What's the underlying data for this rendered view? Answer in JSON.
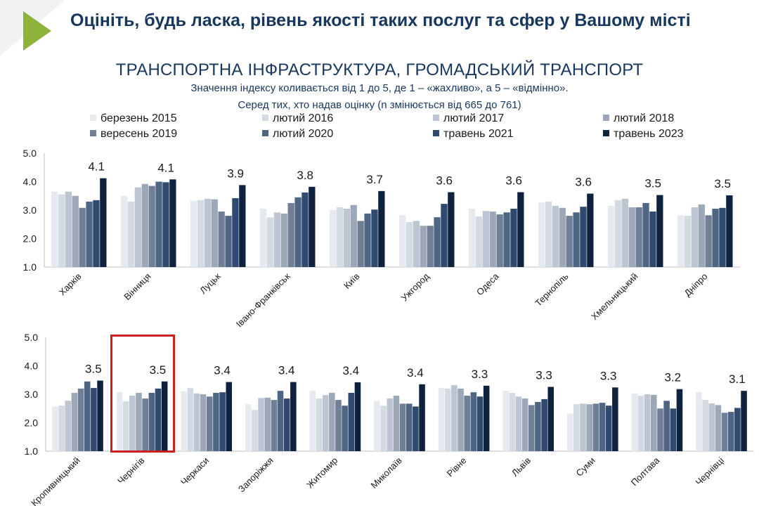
{
  "title": "Оцініть, будь ласка, рівень якості таких послуг та сфер у Вашому місті",
  "subtitle": "ТРАНСПОРТНА ІНФРАСТРУКТУРА, ГРОМАДСЬКИЙ ТРАНСПОРТ",
  "note1": "Значення індексу коливається від 1 до 5, де 1 – «жахливо», а 5 – «відмінно».",
  "note2": "Серед тих, хто надав оцінку (n змінюється від 665 до 761)",
  "colors": {
    "accent_triangle": "#8db33a",
    "title_text": "#17375e",
    "highlight_box": "#cc1f1f",
    "series": [
      "#e6e9ee",
      "#d4dae2",
      "#bcc5d1",
      "#9ca8b8",
      "#6f7f95",
      "#4e6583",
      "#2f4a6e",
      "#0e2240"
    ]
  },
  "legend": [
    "березень 2015",
    "лютий 2016",
    "лютий 2017",
    "лютий 2018",
    "вересень 2019",
    "лютий 2020",
    "травень 2021",
    "травень 2023"
  ],
  "chart_data": [
    {
      "type": "bar",
      "ylim": [
        1,
        5
      ],
      "yticks": [
        "1.0",
        "2.0",
        "3.0",
        "4.0",
        "5.0"
      ],
      "categories": [
        "Харків",
        "Вінниця",
        "Луцьк",
        "Івано-Франківськ",
        "Київ",
        "Ужгород",
        "Одеса",
        "Тернопіль",
        "Хмельницький",
        "Дніпро"
      ],
      "data_labels": [
        "4.1",
        "4.1",
        "3.9",
        "3.8",
        "3.7",
        "3.6",
        "3.6",
        "3.6",
        "3.5",
        "3.5"
      ],
      "series": [
        {
          "name": "березень 2015",
          "values": [
            3.65,
            3.5,
            3.33,
            3.05,
            3.0,
            2.83,
            3.05,
            3.27,
            3.15,
            2.82
          ]
        },
        {
          "name": "лютий 2016",
          "values": [
            3.55,
            3.3,
            3.35,
            2.75,
            3.1,
            2.58,
            2.78,
            3.3,
            3.35,
            2.8
          ]
        },
        {
          "name": "лютий 2017",
          "values": [
            3.65,
            3.8,
            3.4,
            2.92,
            3.05,
            2.62,
            2.97,
            3.15,
            3.4,
            3.1
          ]
        },
        {
          "name": "лютий 2018",
          "values": [
            3.5,
            3.92,
            3.38,
            2.88,
            3.18,
            2.45,
            2.95,
            3.08,
            3.1,
            3.2
          ]
        },
        {
          "name": "вересень 2019",
          "values": [
            3.08,
            3.85,
            2.95,
            3.25,
            2.62,
            2.45,
            2.85,
            2.8,
            3.1,
            2.82
          ]
        },
        {
          "name": "лютий 2020",
          "values": [
            3.3,
            4.0,
            2.8,
            3.45,
            2.88,
            2.75,
            2.92,
            2.92,
            3.25,
            3.05
          ]
        },
        {
          "name": "травень 2021",
          "values": [
            3.35,
            3.98,
            3.42,
            3.62,
            3.02,
            3.22,
            3.05,
            3.12,
            2.95,
            3.08
          ]
        },
        {
          "name": "травень 2023",
          "values": [
            4.12,
            4.08,
            3.88,
            3.82,
            3.67,
            3.63,
            3.63,
            3.58,
            3.53,
            3.52
          ]
        }
      ]
    },
    {
      "type": "bar",
      "ylim": [
        1,
        5
      ],
      "yticks": [
        "1.0",
        "2.0",
        "3.0",
        "4.0",
        "5.0"
      ],
      "categories": [
        "Кропивницький",
        "Чернігів",
        "Черкаси",
        "Запоріжжя",
        "Житомир",
        "Миколаїв",
        "Рівне",
        "Львів",
        "Суми",
        "Полтава",
        "Чернівці"
      ],
      "data_labels": [
        "3.5",
        "3.5",
        "3.4",
        "3.4",
        "3.4",
        "3.4",
        "3.3",
        "3.3",
        "3.3",
        "3.2",
        "3.1"
      ],
      "series": [
        {
          "name": "березень 2015",
          "values": [
            2.57,
            3.08,
            3.1,
            2.65,
            3.12,
            2.77,
            3.22,
            3.12,
            2.32,
            3.03,
            3.07
          ]
        },
        {
          "name": "лютий 2016",
          "values": [
            2.6,
            2.75,
            3.22,
            2.45,
            2.85,
            2.6,
            3.2,
            3.05,
            2.65,
            2.95,
            2.8
          ]
        },
        {
          "name": "лютий 2017",
          "values": [
            2.77,
            2.95,
            3.03,
            2.87,
            2.97,
            2.85,
            3.32,
            2.92,
            2.67,
            3.0,
            2.68
          ]
        },
        {
          "name": "лютий 2018",
          "values": [
            3.05,
            3.05,
            3.0,
            2.88,
            3.05,
            2.95,
            3.2,
            2.85,
            2.65,
            2.98,
            2.62
          ]
        },
        {
          "name": "вересень 2019",
          "values": [
            3.2,
            2.85,
            2.92,
            2.8,
            2.8,
            2.67,
            2.95,
            2.62,
            2.67,
            2.5,
            2.35
          ]
        },
        {
          "name": "лютий 2020",
          "values": [
            3.45,
            3.05,
            3.05,
            3.12,
            2.6,
            2.67,
            3.07,
            2.73,
            2.7,
            2.77,
            2.38
          ]
        },
        {
          "name": "травень 2021",
          "values": [
            3.22,
            3.2,
            3.07,
            2.85,
            3.05,
            2.57,
            2.92,
            2.83,
            2.6,
            2.5,
            2.52
          ]
        },
        {
          "name": "травень 2023",
          "values": [
            3.48,
            3.45,
            3.43,
            3.43,
            3.42,
            3.35,
            3.3,
            3.26,
            3.24,
            3.18,
            3.12
          ]
        }
      ]
    }
  ]
}
